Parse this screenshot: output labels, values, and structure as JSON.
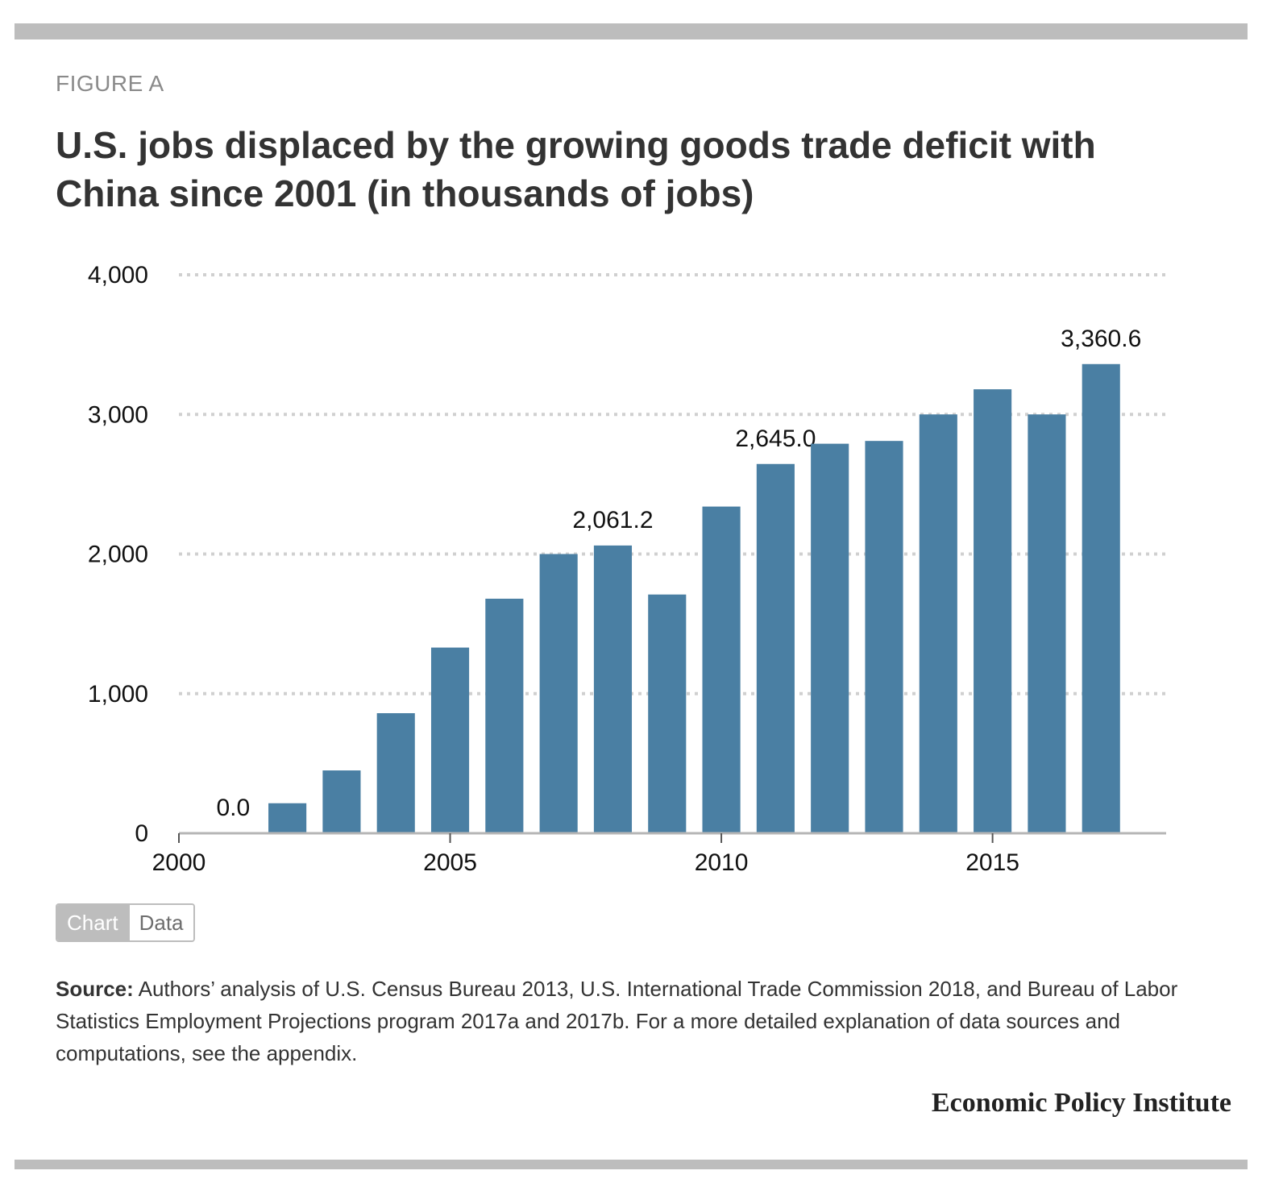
{
  "figure_label": "FIGURE A",
  "title": "U.S. jobs displaced by the growing goods trade deficit with China since 2001 (in thousands of jobs)",
  "toggle": {
    "chart_label": "Chart",
    "data_label": "Data"
  },
  "source": {
    "label": "Source:",
    "text": "Authors’ analysis of U.S. Census Bureau 2013, U.S. International Trade Commission 2018, and Bureau of Labor Statistics Employment Projections program 2017a and 2017b. For a more detailed explanation of data sources and computations, see the appendix."
  },
  "brand": "Economic Policy Institute",
  "colors": {
    "bar": "#4a7fa3",
    "grid": "#d0d0d0",
    "axis": "#b5b5b5",
    "rule": "#bdbdbd"
  },
  "chart_data": {
    "type": "bar",
    "title": "",
    "xlabel": "",
    "ylabel": "",
    "x": [
      2001,
      2002,
      2003,
      2004,
      2005,
      2006,
      2007,
      2008,
      2009,
      2010,
      2011,
      2012,
      2013,
      2014,
      2015,
      2016,
      2017
    ],
    "values": [
      0.0,
      215,
      450,
      860,
      1330,
      1680,
      2000,
      2061.2,
      1710,
      2340,
      2645.0,
      2790,
      2810,
      3000,
      3180,
      3000,
      3360.6
    ],
    "data_labels": {
      "2001": "0.0",
      "2008": "2,061.2",
      "2011": "2,645.0",
      "2017": "3,360.6"
    },
    "xlim": [
      2000,
      2018.2
    ],
    "ylim": [
      0,
      4000
    ],
    "x_ticks": [
      2000,
      2005,
      2010,
      2015
    ],
    "x_tick_labels": [
      "2000",
      "2005",
      "2010",
      "2015"
    ],
    "y_ticks": [
      0,
      1000,
      2000,
      3000,
      4000
    ],
    "y_tick_labels": [
      "0",
      "1,000",
      "2,000",
      "3,000",
      "4,000"
    ],
    "grid": true,
    "legend": "none"
  }
}
